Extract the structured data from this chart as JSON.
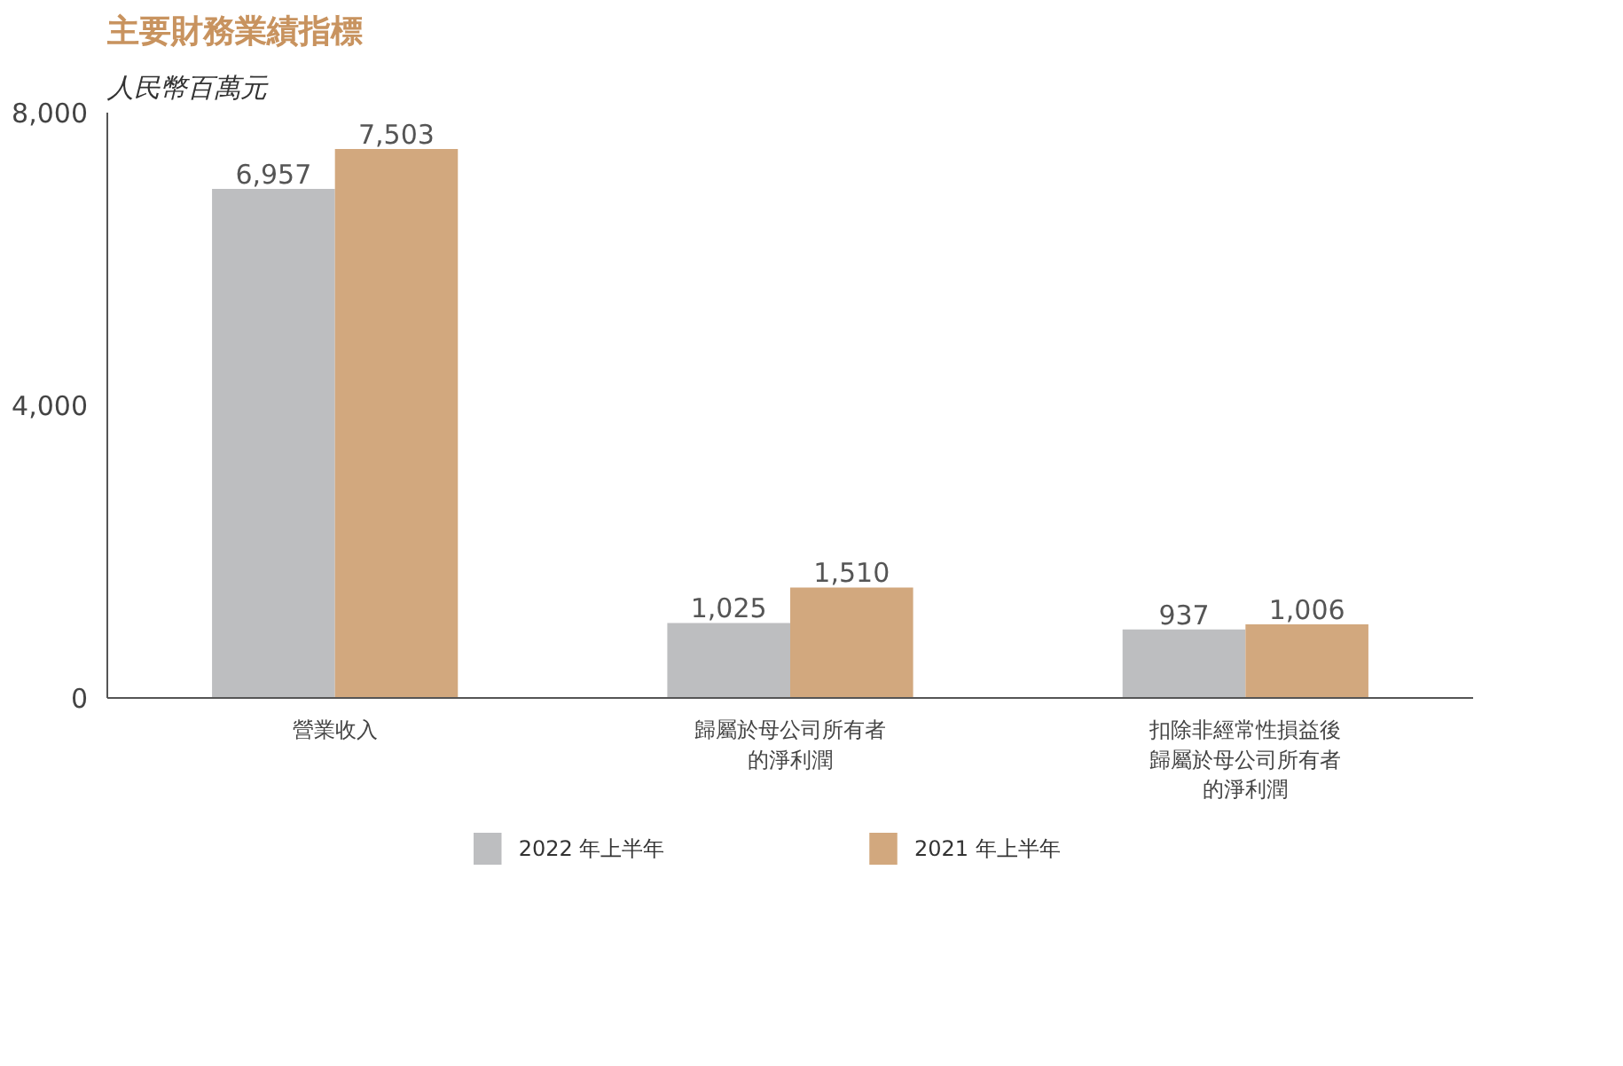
{
  "chart_data": {
    "type": "bar",
    "title": "主要財務業績指標",
    "subtitle": "人民幣百萬元",
    "categories": [
      "營業收入",
      "歸屬於母公司所有者的淨利潤",
      "扣除非經常性損益後歸屬於母公司所有者的淨利潤"
    ],
    "series": [
      {
        "name": "2022 年上半年",
        "color": "#bdbec0",
        "values": [
          6957,
          1025,
          937
        ],
        "value_labels": [
          "6,957",
          "1,025",
          "937"
        ]
      },
      {
        "name": "2021 年上半年",
        "color": "#d2a87e",
        "values": [
          7503,
          1510,
          1006
        ],
        "value_labels": [
          "7,503",
          "1,510",
          "1,006"
        ]
      }
    ],
    "ylim": [
      0,
      8000
    ],
    "yticks": [
      0,
      {
        "value": 4000,
        "label": "4,000"
      },
      {
        "value": 8000,
        "label": "8,000"
      }
    ],
    "legend": "bottom"
  }
}
